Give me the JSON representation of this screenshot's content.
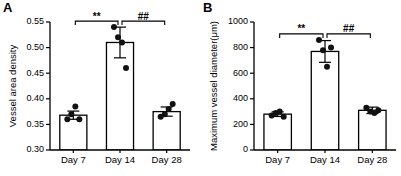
{
  "chart_data": [
    {
      "type": "bar",
      "panel_label": "A",
      "y_label": "Vessel area density",
      "categories": [
        "Day 7",
        "Day 14",
        "Day 28"
      ],
      "values": [
        0.368,
        0.51,
        0.375
      ],
      "errors": [
        0.008,
        0.03,
        0.009
      ],
      "points": [
        [
          0.36,
          0.37,
          0.385,
          0.36
        ],
        [
          0.54,
          0.52,
          0.51,
          0.46
        ],
        [
          0.365,
          0.37,
          0.38,
          0.39
        ]
      ],
      "color": "#ffffff",
      "ylim": [
        0.3,
        0.55
      ],
      "yticks": [
        {
          "value": 0.3,
          "label": "0.30"
        },
        {
          "value": 0.35,
          "label": "0.35"
        },
        {
          "value": 0.4,
          "label": "0.40"
        },
        {
          "value": 0.45,
          "label": "0.45"
        },
        {
          "value": 0.5,
          "label": "0.50"
        },
        {
          "value": 0.55,
          "label": "0.55"
        }
      ],
      "annotations": [
        {
          "label": "**",
          "from": "Day 7",
          "to": "Day 14"
        },
        {
          "label": "##",
          "from": "Day 14",
          "to": "Day 28"
        }
      ]
    },
    {
      "type": "bar",
      "panel_label": "B",
      "y_label": "Maximum vessel diameter(μm)",
      "categories": [
        "Day 7",
        "Day 14",
        "Day 28"
      ],
      "values": [
        280,
        770,
        310
      ],
      "errors": [
        18,
        85,
        25
      ],
      "points": [
        [
          270,
          290,
          300,
          260
        ],
        [
          860,
          780,
          650,
          800
        ],
        [
          330,
          300,
          290,
          310
        ]
      ],
      "color": "#ffffff",
      "ylim": [
        0,
        1000
      ],
      "yticks": [
        0,
        200,
        400,
        600,
        800,
        1000
      ],
      "annotations": [
        {
          "label": "**",
          "from": "Day 7",
          "to": "Day 14"
        },
        {
          "label": "##",
          "from": "Day 14",
          "to": "Day 28"
        }
      ]
    }
  ]
}
